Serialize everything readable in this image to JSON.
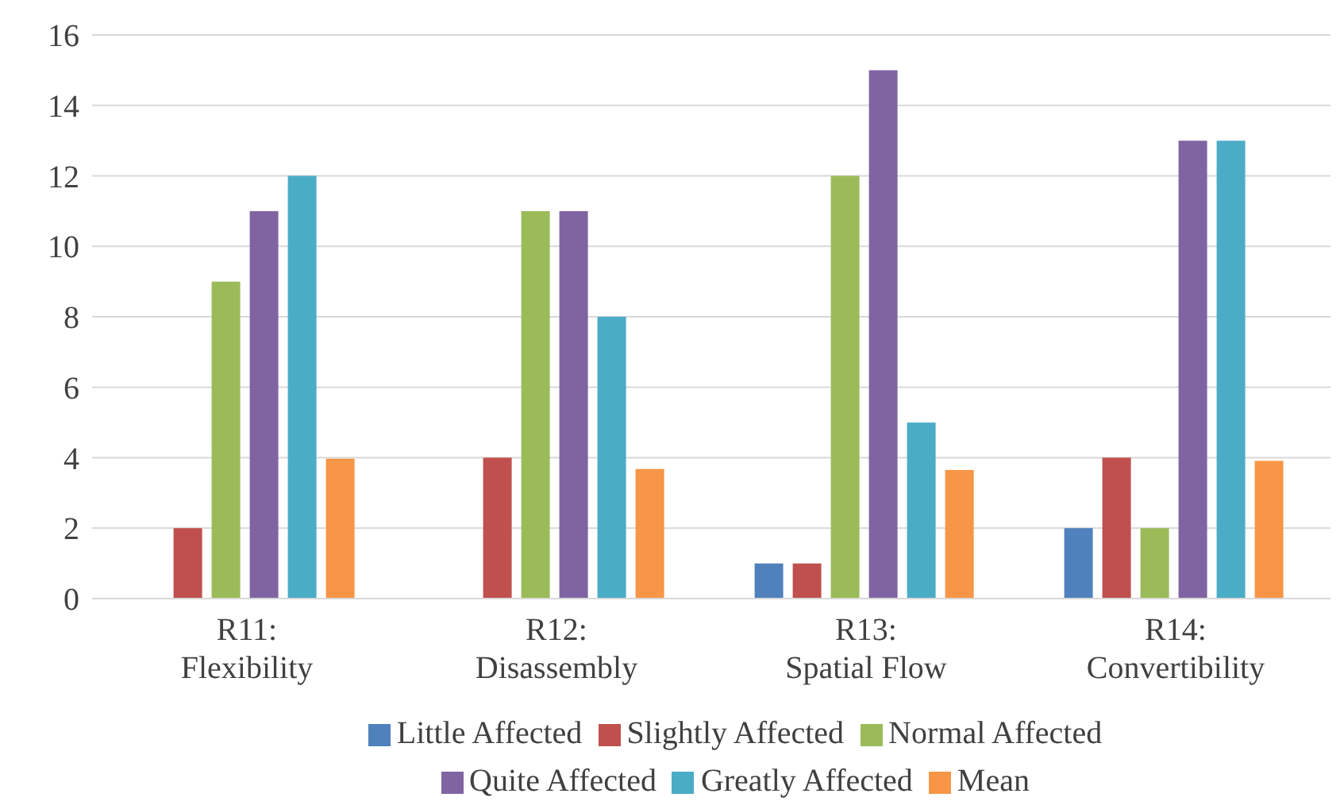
{
  "chart_data": {
    "type": "bar",
    "categories": [
      "R11: Flexibility",
      "R12: Disassembly",
      "R13: Spatial Flow",
      "R14: Convertibility"
    ],
    "series": [
      {
        "name": "Little Affected",
        "color": "#4f81bd",
        "values": [
          0,
          0,
          1,
          2
        ]
      },
      {
        "name": "Slightly Affected",
        "color": "#c0504d",
        "values": [
          2,
          4,
          1,
          4
        ]
      },
      {
        "name": "Normal Affected",
        "color": "#9bbb59",
        "values": [
          9,
          11,
          12,
          2
        ]
      },
      {
        "name": "Quite Affected",
        "color": "#8064a2",
        "values": [
          11,
          11,
          15,
          13
        ]
      },
      {
        "name": "Greatly Affected",
        "color": "#4bacc6",
        "values": [
          12,
          8,
          5,
          13
        ]
      },
      {
        "name": "Mean",
        "color": "#f79646",
        "values": [
          3.97,
          3.68,
          3.65,
          3.91
        ]
      }
    ],
    "ylim": [
      0,
      16
    ],
    "yticks": [
      0,
      2,
      4,
      6,
      8,
      10,
      12,
      14,
      16
    ],
    "grid": "y",
    "legend": "bottom"
  }
}
